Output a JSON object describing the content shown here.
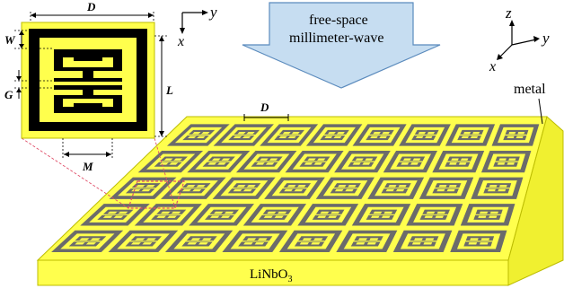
{
  "unit_cell": {
    "dim_D": "D",
    "dim_W": "W",
    "dim_G": "G",
    "dim_L": "L",
    "dim_M": "M"
  },
  "axes_2d": {
    "y": "y",
    "x": "x"
  },
  "axes_3d": {
    "z": "z",
    "y": "y",
    "x": "x"
  },
  "wave": {
    "line1": "free-space",
    "line2": "millimeter-wave"
  },
  "array": {
    "dim_D": "D",
    "metal_label": "metal",
    "rows": 5,
    "cols": 8
  },
  "substrate": {
    "label_main": "LiNbO",
    "label_sub": "3"
  },
  "colors": {
    "yellow": "#ffff4d",
    "yellow_edge": "#c8c800",
    "metal_dark": "#6b6b6b",
    "black": "#000000",
    "arrow_fill": "#c6ddf1",
    "arrow_stroke": "#5b8bbd",
    "guide_red": "#e0506a"
  }
}
